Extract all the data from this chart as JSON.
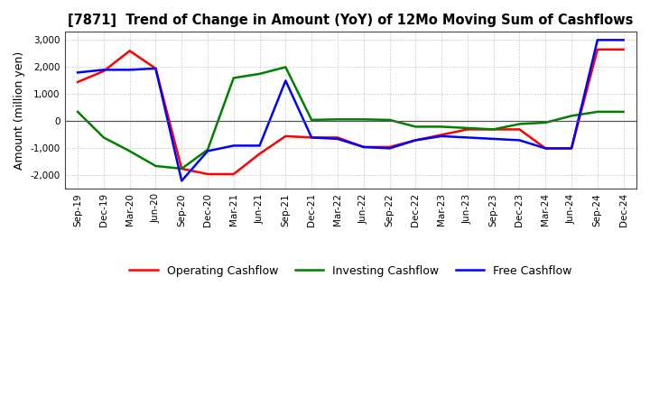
{
  "title": "[7871]  Trend of Change in Amount (YoY) of 12Mo Moving Sum of Cashflows",
  "ylabel": "Amount (million yen)",
  "x_labels": [
    "Sep-19",
    "Dec-19",
    "Mar-20",
    "Jun-20",
    "Sep-20",
    "Dec-20",
    "Mar-21",
    "Jun-21",
    "Sep-21",
    "Dec-21",
    "Mar-22",
    "Jun-22",
    "Sep-22",
    "Dec-22",
    "Mar-23",
    "Jun-23",
    "Sep-23",
    "Dec-23",
    "Mar-24",
    "Jun-24",
    "Sep-24",
    "Dec-24"
  ],
  "operating": [
    1450,
    1850,
    2600,
    1950,
    -1750,
    -1950,
    -1950,
    -1200,
    -550,
    -600,
    -600,
    -950,
    -950,
    -700,
    -500,
    -300,
    -300,
    -300,
    -1000,
    -1000,
    2650,
    2650
  ],
  "investing": [
    350,
    -600,
    -1100,
    -1650,
    -1750,
    -1050,
    1600,
    1750,
    2000,
    50,
    70,
    70,
    50,
    -200,
    -200,
    -250,
    -300,
    -100,
    -50,
    200,
    350,
    350
  ],
  "free": [
    1800,
    1900,
    1900,
    1950,
    -2200,
    -1100,
    -900,
    -900,
    1500,
    -600,
    -650,
    -950,
    -1000,
    -700,
    -550,
    -600,
    -650,
    -700,
    -1000,
    -1000,
    3000,
    3000
  ],
  "ylim": [
    -2500,
    3300
  ],
  "yticks": [
    -2000,
    -1000,
    0,
    1000,
    2000,
    3000
  ],
  "operating_color": "#ff0000",
  "investing_color": "#008000",
  "free_color": "#0000ff",
  "bg_color": "#ffffff",
  "grid_color": "#aaaaaa"
}
